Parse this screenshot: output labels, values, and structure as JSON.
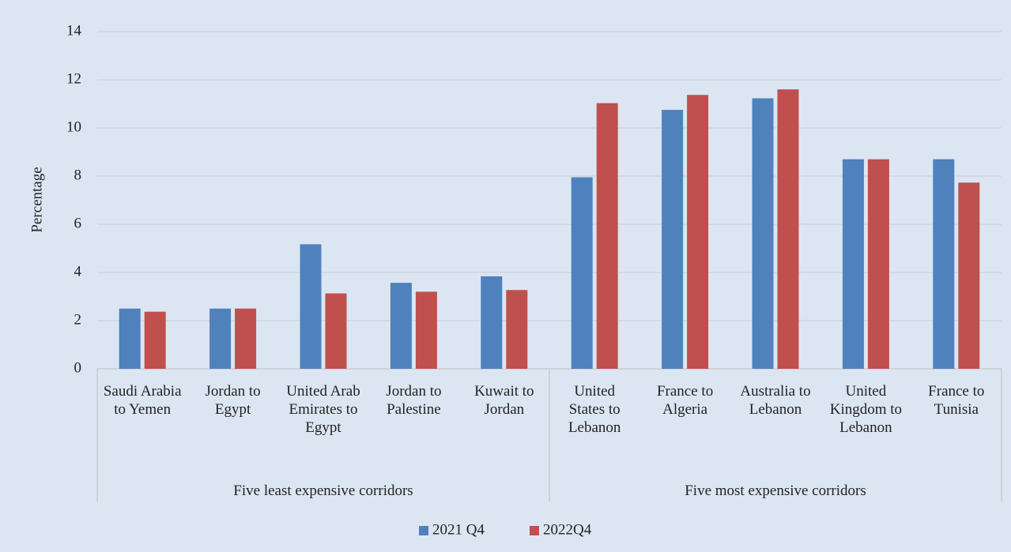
{
  "chart_data": {
    "type": "bar",
    "y_label": "Percentage",
    "groups": [
      {
        "name": "Five least expensive corridors",
        "categories": [
          "Saudi Arabia to Yemen",
          "Jordan to Egypt",
          "United Arab Emirates to Egypt",
          "Jordan to Palestine",
          "Kuwait to Jordan"
        ]
      },
      {
        "name": "Five most expensive corridors",
        "categories": [
          "United States to Lebanon",
          "France to Algeria",
          "Australia to Lebanon",
          "United Kingdom to Lebanon",
          "France to Tunisia"
        ]
      }
    ],
    "series": [
      {
        "name": "2021 Q4",
        "color": "#4f81bd",
        "values": [
          2.5,
          2.5,
          5.17,
          3.57,
          3.84,
          7.95,
          10.75,
          11.23,
          8.7,
          8.7
        ]
      },
      {
        "name": "2022Q4",
        "color": "#c0504d",
        "values": [
          2.37,
          2.5,
          3.13,
          3.2,
          3.27,
          11.03,
          11.37,
          11.6,
          8.7,
          7.73
        ]
      }
    ],
    "ylim": [
      0,
      14
    ],
    "yticks": [
      0,
      2,
      4,
      6,
      8,
      10,
      12,
      14
    ],
    "grid": true,
    "legend": "bottom"
  }
}
